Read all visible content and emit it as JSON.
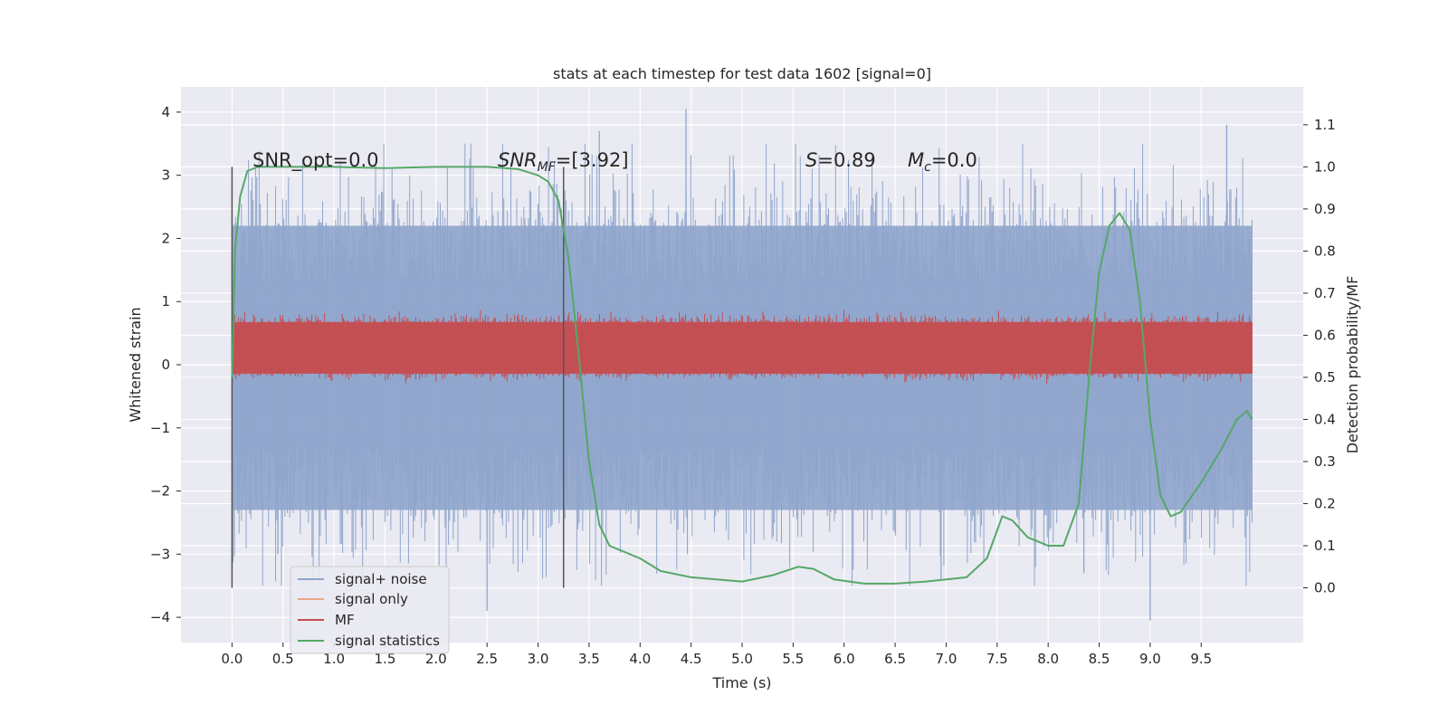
{
  "chart_data": {
    "type": "line",
    "title": "stats at each timestep for test data 1602 [signal=0]",
    "xlabel": "Time (s)",
    "ylabel_left": "Whitened strain",
    "ylabel_right": "Detection probability/MF",
    "xlim": [
      -0.5,
      10.5
    ],
    "ylim_left": [
      -4.4,
      4.4
    ],
    "ylim_right": [
      -0.13,
      1.19
    ],
    "x_ticks": [
      "0.0",
      "0.5",
      "1.0",
      "1.5",
      "2.0",
      "2.5",
      "3.0",
      "3.5",
      "4.0",
      "4.5",
      "5.0",
      "5.5",
      "6.0",
      "6.5",
      "7.0",
      "7.5",
      "8.0",
      "8.5",
      "9.0",
      "9.5"
    ],
    "y_left_ticks": [
      "4",
      "3",
      "2",
      "1",
      "0",
      "−1",
      "−2",
      "−3",
      "−4"
    ],
    "y_right_ticks": [
      "1.1",
      "1.0",
      "0.9",
      "0.8",
      "0.7",
      "0.6",
      "0.5",
      "0.4",
      "0.3",
      "0.2",
      "0.1",
      "0.0"
    ],
    "grid": true,
    "legend_position": "lower-left",
    "annotations": {
      "snr_opt": "SNR_opt=0.0",
      "snr_mf_main": "SNR",
      "snr_mf_sub": "MF",
      "snr_mf_value": "=[3.92]",
      "s_main": "S",
      "s_value": "=0.89",
      "mc_main": "M",
      "mc_sub": "c",
      "mc_value": "=0.0"
    },
    "vlines": [
      0.0,
      3.25
    ],
    "series": [
      {
        "name": "signal+ noise",
        "color": "#8fa5cc",
        "axis": "left",
        "x_range": [
          0.0,
          10.0
        ],
        "envelope_typical": [
          -2.3,
          2.2
        ],
        "extremes": [
          {
            "x": 0.45,
            "y": -3.0
          },
          {
            "x": 2.5,
            "y": -3.9
          },
          {
            "x": 3.6,
            "y": 3.7
          },
          {
            "x": 4.45,
            "y": 4.05
          },
          {
            "x": 6.95,
            "y": -3.4
          },
          {
            "x": 8.35,
            "y": -3.3
          },
          {
            "x": 9.0,
            "y": -4.05
          },
          {
            "x": 9.75,
            "y": 3.8
          }
        ]
      },
      {
        "name": "signal only",
        "color": "#eaa889",
        "axis": "left",
        "x": [
          0.0,
          10.0
        ],
        "y": [
          0.0,
          0.0
        ]
      },
      {
        "name": "MF",
        "color": "#c44e52",
        "axis": "right",
        "x_range": [
          0.0,
          10.0
        ],
        "band": [
          0.5,
          0.64
        ],
        "peaks": 0.66
      },
      {
        "name": "signal statistics",
        "color": "#55a868",
        "axis": "right",
        "x": [
          0.0,
          0.03,
          0.08,
          0.15,
          0.25,
          0.5,
          1.0,
          1.5,
          2.0,
          2.5,
          2.8,
          3.0,
          3.1,
          3.2,
          3.3,
          3.4,
          3.5,
          3.6,
          3.7,
          3.8,
          4.0,
          4.2,
          4.5,
          5.0,
          5.3,
          5.55,
          5.7,
          5.9,
          6.2,
          6.5,
          6.8,
          7.0,
          7.2,
          7.4,
          7.55,
          7.65,
          7.8,
          8.0,
          8.15,
          8.3,
          8.4,
          8.5,
          8.6,
          8.7,
          8.8,
          8.9,
          9.0,
          9.1,
          9.2,
          9.3,
          9.5,
          9.7,
          9.85,
          9.95,
          10.0
        ],
        "y": [
          0.5,
          0.8,
          0.93,
          0.99,
          1.0,
          1.0,
          1.0,
          0.997,
          1.0,
          1.0,
          0.995,
          0.98,
          0.965,
          0.92,
          0.78,
          0.55,
          0.3,
          0.15,
          0.1,
          0.09,
          0.07,
          0.04,
          0.025,
          0.015,
          0.03,
          0.05,
          0.045,
          0.02,
          0.01,
          0.01,
          0.015,
          0.02,
          0.025,
          0.07,
          0.17,
          0.16,
          0.12,
          0.1,
          0.1,
          0.2,
          0.5,
          0.75,
          0.86,
          0.89,
          0.85,
          0.68,
          0.4,
          0.22,
          0.17,
          0.18,
          0.25,
          0.33,
          0.4,
          0.42,
          0.4
        ]
      }
    ]
  }
}
